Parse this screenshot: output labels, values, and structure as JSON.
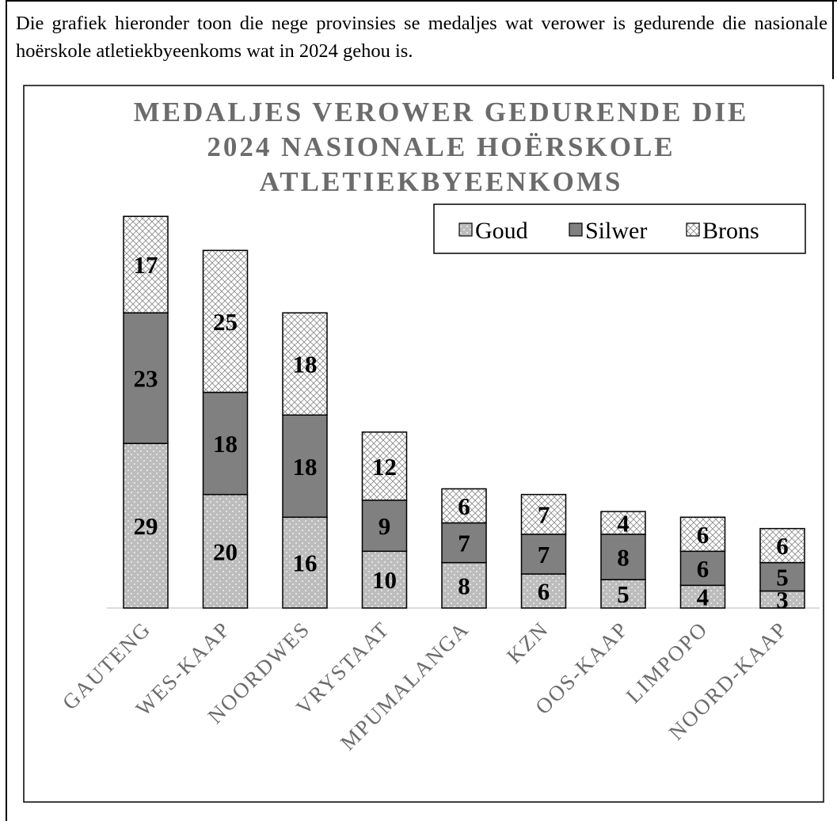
{
  "intro": "Die grafiek hieronder toon die nege provinsies se medaljes wat verower is gedurende die nasionale hoërskole atletiekbyeenkoms wat in 2024 gehou is.",
  "chart_data": {
    "type": "stacked_bar",
    "title": "MEDALJES VEROWER GEDURENDE DIE 2024 NASIONALE HOËRSKOLE ATLETIEKBYEENKOMS",
    "categories": [
      "GAUTENG",
      "WES-KAAP",
      "NOORDWES",
      "VRYSTAAT",
      "MPUMALANGA",
      "KZN",
      "OOS-KAAP",
      "LIMPOPO",
      "NOORD-KAAP"
    ],
    "series": [
      {
        "name": "Goud",
        "color": "#bdbdbd",
        "values": [
          29,
          20,
          16,
          10,
          8,
          6,
          5,
          4,
          3
        ]
      },
      {
        "name": "Silwer",
        "color": "#808080",
        "values": [
          23,
          18,
          18,
          9,
          7,
          7,
          8,
          6,
          5
        ]
      },
      {
        "name": "Brons",
        "color": "#ffffff",
        "values": [
          17,
          25,
          18,
          12,
          6,
          7,
          4,
          6,
          6
        ]
      }
    ],
    "legend": "top-right",
    "grid": false
  }
}
